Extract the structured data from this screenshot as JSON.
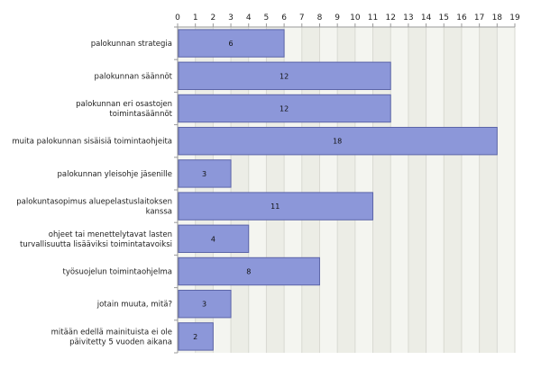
{
  "chart_data": {
    "type": "bar",
    "orientation": "horizontal",
    "title": "",
    "xlabel": "",
    "ylabel": "",
    "xlim": [
      0,
      19
    ],
    "x_ticks": [
      0,
      1,
      2,
      3,
      4,
      5,
      6,
      7,
      8,
      9,
      10,
      11,
      12,
      13,
      14,
      15,
      16,
      17,
      18,
      19
    ],
    "x_axis_position": "top",
    "grid": true,
    "legend": "none",
    "categories": [
      "palokunnan strategia",
      "palokunnan säännöt",
      "palokunnan eri osastojen toimintasäännöt",
      "muita palokunnan sisäisiä toimintaohjeita",
      "palokunnan yleisohje jäsenille",
      "palokuntasopimus aluepelastuslaitoksen kanssa",
      "ohjeet tai menettelytavat lasten turvallisuutta lisääviksi toimintatavoiksi",
      "työsuojelun toimintaohjelma",
      "jotain muuta, mitä?",
      "mitään edellä mainituista ei ole päivitetty 5 vuoden aikana"
    ],
    "category_lines": [
      [
        "palokunnan strategia"
      ],
      [
        "palokunnan säännöt"
      ],
      [
        "palokunnan eri osastojen",
        "toimintasäännöt"
      ],
      [
        "muita palokunnan sisäisiä toimintaohjeita"
      ],
      [
        "palokunnan yleisohje jäsenille"
      ],
      [
        "palokuntasopimus aluepelastuslaitoksen",
        "kanssa"
      ],
      [
        "ohjeet tai menettelytavat lasten",
        "turvallisuutta lisääviksi toimintatavoiksi"
      ],
      [
        "työsuojelun toimintaohjelma"
      ],
      [
        "jotain muuta, mitä?"
      ],
      [
        "mitään edellä mainituista ei ole",
        "päivitetty 5 vuoden aikana"
      ]
    ],
    "values": [
      6,
      12,
      12,
      18,
      3,
      11,
      4,
      8,
      3,
      2
    ],
    "colors": {
      "bar_fill": "#8c97d9",
      "bar_stroke": "#5c65a8",
      "plot_bg": "#f4f5f0",
      "band_alt": "#ecede6",
      "grid": "#d8d9d2",
      "axis": "#9a9a9a"
    }
  }
}
